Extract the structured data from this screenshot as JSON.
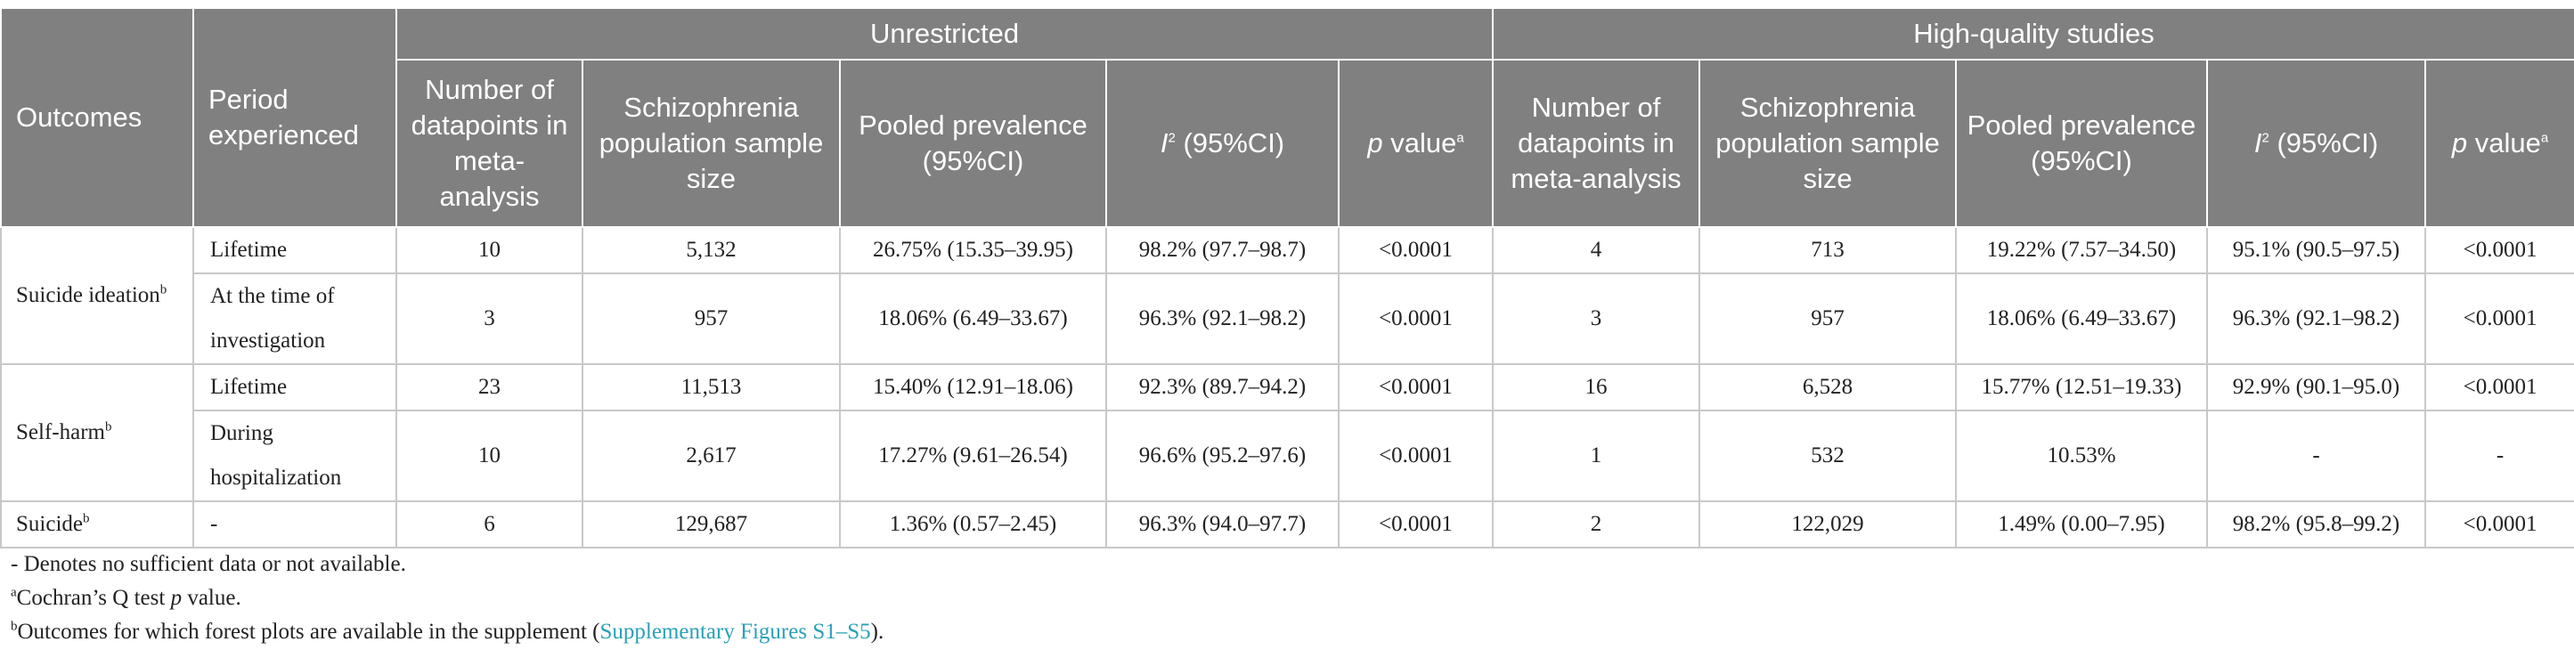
{
  "header": {
    "outcomes": "Outcomes",
    "period": "Period experienced",
    "group_unrestricted": "Unrestricted",
    "group_high_quality": "High-quality studies",
    "unrestricted_cols": {
      "datapoints": "Number of datapoints in meta-analysis",
      "sample_size": "Schizophrenia population sample size",
      "pooled": "Pooled prevalence (95%CI)",
      "i2_letter": "I",
      "i2_sup": "2",
      "i2_rest": " (95%CI)",
      "p_italic": "p",
      "p_rest": " value",
      "p_sup": "a"
    },
    "high_quality_cols": {
      "datapoints": "Number of datapoints in meta-analysis",
      "sample_size": "Schizophrenia population sample size",
      "pooled": "Pooled prevalence (95%CI)",
      "i2_letter": "I",
      "i2_sup": "2",
      "i2_rest": " (95%CI)",
      "p_italic": "p",
      "p_rest": " value",
      "p_sup": "a"
    }
  },
  "rows": [
    {
      "outcome": "Suicide ideation",
      "outcome_sup": "b",
      "period": "Lifetime",
      "u_n": "10",
      "u_size": "5,132",
      "u_pooled": "26.75% (15.35–39.95)",
      "u_i2": "98.2% (97.7–98.7)",
      "u_p": "<0.0001",
      "h_n": "4",
      "h_size": "713",
      "h_pooled": "19.22% (7.57–34.50)",
      "h_i2": "95.1% (90.5–97.5)",
      "h_p": "<0.0001"
    },
    {
      "period": "At the time of investigation",
      "u_n": "3",
      "u_size": "957",
      "u_pooled": "18.06% (6.49–33.67)",
      "u_i2": "96.3% (92.1–98.2)",
      "u_p": "<0.0001",
      "h_n": "3",
      "h_size": "957",
      "h_pooled": "18.06% (6.49–33.67)",
      "h_i2": "96.3% (92.1–98.2)",
      "h_p": "<0.0001"
    },
    {
      "outcome": "Self-harm",
      "outcome_sup": "b",
      "period": "Lifetime",
      "u_n": "23",
      "u_size": "11,513",
      "u_pooled": "15.40% (12.91–18.06)",
      "u_i2": "92.3% (89.7–94.2)",
      "u_p": "<0.0001",
      "h_n": "16",
      "h_size": "6,528",
      "h_pooled": "15.77% (12.51–19.33)",
      "h_i2": "92.9% (90.1–95.0)",
      "h_p": "<0.0001"
    },
    {
      "period": "During hospitalization",
      "u_n": "10",
      "u_size": "2,617",
      "u_pooled": "17.27% (9.61–26.54)",
      "u_i2": "96.6% (95.2–97.6)",
      "u_p": "<0.0001",
      "h_n": "1",
      "h_size": "532",
      "h_pooled": "10.53%",
      "h_i2": "-",
      "h_p": "-"
    },
    {
      "outcome": "Suicide",
      "outcome_sup": "b",
      "period": "-",
      "u_n": "6",
      "u_size": "129,687",
      "u_pooled": "1.36% (0.57–2.45)",
      "u_i2": "96.3% (94.0–97.7)",
      "u_p": "<0.0001",
      "h_n": "2",
      "h_size": "122,029",
      "h_pooled": "1.49% (0.00–7.95)",
      "h_i2": "98.2% (95.8–99.2)",
      "h_p": "<0.0001"
    }
  ],
  "footnotes": {
    "dash": "- Denotes no sufficient data or not available.",
    "a_sup": "a",
    "a_text_pre": "Cochran’s Q test ",
    "a_text_italic": "p",
    "a_text_post": " value.",
    "b_sup": "b",
    "b_text_pre": "Outcomes for which forest plots are available in the supplement (",
    "b_link": "Supplementary Figures S1–S5",
    "b_text_post": ")."
  }
}
